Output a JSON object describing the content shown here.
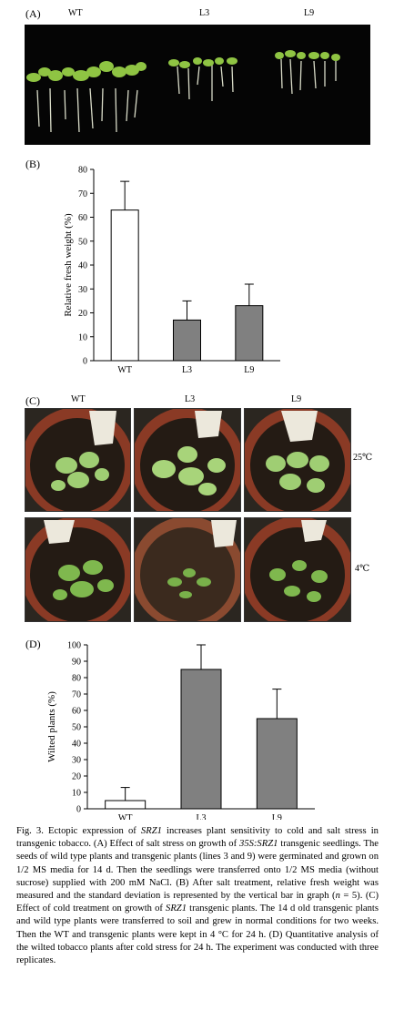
{
  "panel_a": {
    "label": "(A)",
    "columns": [
      "WT",
      "L3",
      "L9"
    ]
  },
  "panel_c": {
    "label": "(C)",
    "columns": [
      "WT",
      "L3",
      "L9"
    ],
    "rows": [
      "25℃",
      "4℃"
    ]
  },
  "chart_data": [
    {
      "panel": "(B)",
      "type": "bar",
      "categories": [
        "WT",
        "L3",
        "L9"
      ],
      "values": [
        63,
        17,
        23
      ],
      "errors": [
        12,
        8,
        9
      ],
      "bar_colors": [
        "#ffffff",
        "#808080",
        "#808080"
      ],
      "ylabel": "Relative fresh weight (%)",
      "ylim": [
        0,
        80
      ],
      "yticks": [
        0,
        10,
        20,
        30,
        40,
        50,
        60,
        70,
        80
      ]
    },
    {
      "panel": "(D)",
      "type": "bar",
      "categories": [
        "WT",
        "L3",
        "L9"
      ],
      "values": [
        5,
        85,
        55
      ],
      "errors": [
        8,
        15,
        18
      ],
      "bar_colors": [
        "#ffffff",
        "#808080",
        "#808080"
      ],
      "ylabel": "Wilted plants (%)",
      "ylim": [
        0,
        100
      ],
      "yticks": [
        0,
        10,
        20,
        30,
        40,
        50,
        60,
        70,
        80,
        90,
        100
      ]
    }
  ],
  "caption": {
    "p1": "Fig. 3.  Ectopic expression of ",
    "i1": "SRZ1",
    "p2": " increases plant sensitivity to cold and salt stress in transgenic tobacco. (A) Effect of salt stress on growth of ",
    "i2": "35S:SRZ1",
    "p3": " transgenic seedlings. The seeds of wild type plants and transgenic plants (lines 3 and 9) were germinated and grown on 1/2 MS media for 14 d. Then the seedlings were transferred onto 1/2 MS media (without sucrose) supplied with 200 mM NaCl. (B) After salt treatment, relative fresh weight was measured and the standard deviation is represented by the vertical bar in graph (",
    "i3": "n",
    "p4": " = 5). (C) Effect of cold treatment on growth of ",
    "i4": "SRZ1",
    "p5": " transgenic plants. The 14 d old transgenic plants and wild type plants were transferred to soil and grew in normal conditions for two weeks. Then the WT and transgenic plants were kept in 4 °C for 24 h. (D) Quantitative analysis of the wilted tobacco plants after cold stress for 24 h. The experiment was conducted with three replicates."
  }
}
